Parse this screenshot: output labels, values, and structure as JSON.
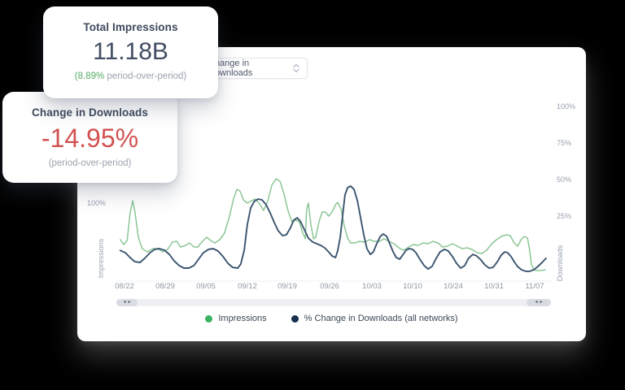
{
  "kpi1": {
    "title": "Total Impressions",
    "value": "11.18B",
    "delta_green": "(8.89%",
    "delta_gray": " period-over-period)"
  },
  "kpi2": {
    "title": "Change in Downloads",
    "value": "-14.95%",
    "subtitle": "(period-over-period)"
  },
  "panel": {
    "dropdown": {
      "value": "Change in Downloads"
    },
    "left_axis": {
      "title": "Impressions",
      "tick": "100%"
    },
    "right_axis": {
      "title": "Downloads",
      "ticks": [
        "100%",
        "75%",
        "50%",
        "25%"
      ]
    },
    "scrollbar": {
      "left_arrow": "◂",
      "right_arrow": "▸"
    },
    "legend": [
      {
        "label": "Impressions",
        "color": "#3cb264"
      },
      {
        "label": "% Change in Downloads (all networks)",
        "color": "#16304d"
      }
    ]
  },
  "colors": {
    "kpi_positive": "#53ab66",
    "kpi_negative": "#d15250",
    "heading_navy": "#3e4a5e",
    "impressions_line": "#8cc695",
    "downloads_line": "#3b5570"
  },
  "chart_data": {
    "type": "line",
    "title": "",
    "x_ticks": [
      "08/22",
      "08/29",
      "09/05",
      "09/12",
      "09/19",
      "09/26",
      "10/03",
      "10/10",
      "10/24",
      "10/31",
      "11/07"
    ],
    "left_axis": {
      "label": "Impressions",
      "visible_ticks": [
        "100%"
      ],
      "unit": "%"
    },
    "right_axis": {
      "label": "Downloads",
      "visible_ticks": [
        "100%",
        "75%",
        "50%",
        "25%"
      ],
      "unit": "%",
      "range_estimate": [
        -15,
        100
      ]
    },
    "legend_position": "bottom",
    "grid": false,
    "series": [
      {
        "name": "Impressions",
        "axis": "left",
        "color": "#8cc695",
        "points": [
          [
            0.009,
            50
          ],
          [
            0.017,
            44
          ],
          [
            0.025,
            49
          ],
          [
            0.032,
            83
          ],
          [
            0.038,
            98
          ],
          [
            0.043,
            85
          ],
          [
            0.051,
            53
          ],
          [
            0.06,
            39
          ],
          [
            0.072,
            35
          ],
          [
            0.085,
            39
          ],
          [
            0.096,
            39
          ],
          [
            0.108,
            35
          ],
          [
            0.119,
            38
          ],
          [
            0.13,
            47
          ],
          [
            0.14,
            48
          ],
          [
            0.149,
            41
          ],
          [
            0.161,
            43
          ],
          [
            0.17,
            46
          ],
          [
            0.18,
            41
          ],
          [
            0.189,
            41
          ],
          [
            0.2,
            48
          ],
          [
            0.21,
            53
          ],
          [
            0.219,
            49
          ],
          [
            0.229,
            46
          ],
          [
            0.24,
            50
          ],
          [
            0.251,
            58
          ],
          [
            0.263,
            79
          ],
          [
            0.272,
            100
          ],
          [
            0.28,
            112
          ],
          [
            0.287,
            110
          ],
          [
            0.295,
            99
          ],
          [
            0.304,
            95
          ],
          [
            0.314,
            98
          ],
          [
            0.323,
            100
          ],
          [
            0.333,
            94
          ],
          [
            0.342,
            86
          ],
          [
            0.352,
            98
          ],
          [
            0.361,
            117
          ],
          [
            0.371,
            125
          ],
          [
            0.38,
            122
          ],
          [
            0.389,
            107
          ],
          [
            0.399,
            85
          ],
          [
            0.408,
            72
          ],
          [
            0.418,
            74
          ],
          [
            0.425,
            72
          ],
          [
            0.433,
            58
          ],
          [
            0.439,
            51
          ],
          [
            0.442,
            87
          ],
          [
            0.446,
            95
          ],
          [
            0.452,
            68
          ],
          [
            0.458,
            51
          ],
          [
            0.463,
            53
          ],
          [
            0.471,
            73
          ],
          [
            0.478,
            84
          ],
          [
            0.486,
            84
          ],
          [
            0.493,
            79
          ],
          [
            0.501,
            84
          ],
          [
            0.509,
            93
          ],
          [
            0.514,
            96
          ],
          [
            0.522,
            88
          ],
          [
            0.529,
            68
          ],
          [
            0.537,
            52
          ],
          [
            0.544,
            46
          ],
          [
            0.554,
            46
          ],
          [
            0.565,
            48
          ],
          [
            0.577,
            47
          ],
          [
            0.588,
            50
          ],
          [
            0.599,
            48
          ],
          [
            0.611,
            48
          ],
          [
            0.622,
            51
          ],
          [
            0.633,
            48
          ],
          [
            0.645,
            45
          ],
          [
            0.656,
            40
          ],
          [
            0.667,
            37
          ],
          [
            0.679,
            41
          ],
          [
            0.69,
            44
          ],
          [
            0.701,
            43
          ],
          [
            0.713,
            46
          ],
          [
            0.724,
            45
          ],
          [
            0.735,
            48
          ],
          [
            0.747,
            46
          ],
          [
            0.758,
            41
          ],
          [
            0.769,
            42
          ],
          [
            0.781,
            45
          ],
          [
            0.792,
            42
          ],
          [
            0.803,
            39
          ],
          [
            0.815,
            40
          ],
          [
            0.826,
            38
          ],
          [
            0.838,
            34
          ],
          [
            0.849,
            33
          ],
          [
            0.86,
            37
          ],
          [
            0.872,
            45
          ],
          [
            0.883,
            50
          ],
          [
            0.894,
            54
          ],
          [
            0.906,
            56
          ],
          [
            0.915,
            55
          ],
          [
            0.924,
            46
          ],
          [
            0.932,
            42
          ],
          [
            0.94,
            50
          ],
          [
            0.947,
            54
          ],
          [
            0.955,
            52
          ],
          [
            0.96,
            37
          ],
          [
            0.964,
            20
          ],
          [
            0.97,
            13
          ],
          [
            0.977,
            12
          ],
          [
            0.987,
            12
          ],
          [
            0.996,
            13
          ]
        ]
      },
      {
        "name": "% Change in Downloads (all networks)",
        "axis": "right",
        "color": "#3b5570",
        "points": [
          [
            0.009,
            1.0
          ],
          [
            0.021,
            -0.6
          ],
          [
            0.032,
            -3.9
          ],
          [
            0.043,
            -6.7
          ],
          [
            0.055,
            -7.2
          ],
          [
            0.066,
            -4.4
          ],
          [
            0.078,
            -0.6
          ],
          [
            0.089,
            1.7
          ],
          [
            0.1,
            2.2
          ],
          [
            0.112,
            1.1
          ],
          [
            0.123,
            -1.7
          ],
          [
            0.134,
            -6.1
          ],
          [
            0.146,
            -9.4
          ],
          [
            0.157,
            -11.1
          ],
          [
            0.168,
            -11.1
          ],
          [
            0.18,
            -9.4
          ],
          [
            0.191,
            -5.0
          ],
          [
            0.202,
            -0.6
          ],
          [
            0.214,
            1.7
          ],
          [
            0.225,
            2.2
          ],
          [
            0.236,
            0.6
          ],
          [
            0.248,
            -3.3
          ],
          [
            0.259,
            -7.8
          ],
          [
            0.27,
            -10.6
          ],
          [
            0.282,
            -11.1
          ],
          [
            0.289,
            -8.3
          ],
          [
            0.297,
            1.1
          ],
          [
            0.304,
            18.3
          ],
          [
            0.312,
            30.0
          ],
          [
            0.32,
            34.4
          ],
          [
            0.329,
            36.1
          ],
          [
            0.338,
            35.6
          ],
          [
            0.348,
            32.2
          ],
          [
            0.357,
            26.7
          ],
          [
            0.367,
            20.0
          ],
          [
            0.376,
            14.4
          ],
          [
            0.386,
            11.1
          ],
          [
            0.395,
            11.7
          ],
          [
            0.405,
            16.7
          ],
          [
            0.412,
            21.7
          ],
          [
            0.42,
            23.3
          ],
          [
            0.427,
            21.1
          ],
          [
            0.437,
            15.0
          ],
          [
            0.446,
            9.4
          ],
          [
            0.456,
            6.7
          ],
          [
            0.465,
            5.6
          ],
          [
            0.475,
            4.4
          ],
          [
            0.484,
            2.8
          ],
          [
            0.493,
            0.0
          ],
          [
            0.501,
            -2.8
          ],
          [
            0.509,
            -3.9
          ],
          [
            0.514,
            0.6
          ],
          [
            0.52,
            10.0
          ],
          [
            0.526,
            26.1
          ],
          [
            0.531,
            38.9
          ],
          [
            0.537,
            43.9
          ],
          [
            0.544,
            45.0
          ],
          [
            0.552,
            42.8
          ],
          [
            0.56,
            35.0
          ],
          [
            0.567,
            23.9
          ],
          [
            0.575,
            11.1
          ],
          [
            0.582,
            2.2
          ],
          [
            0.59,
            -1.7
          ],
          [
            0.597,
            0.0
          ],
          [
            0.605,
            5.6
          ],
          [
            0.613,
            10.6
          ],
          [
            0.62,
            12.2
          ],
          [
            0.628,
            10.6
          ],
          [
            0.635,
            5.6
          ],
          [
            0.643,
            0.0
          ],
          [
            0.65,
            -3.9
          ],
          [
            0.658,
            -5.0
          ],
          [
            0.665,
            -2.2
          ],
          [
            0.673,
            1.1
          ],
          [
            0.68,
            2.2
          ],
          [
            0.688,
            1.7
          ],
          [
            0.696,
            -0.6
          ],
          [
            0.705,
            -5.0
          ],
          [
            0.715,
            -9.4
          ],
          [
            0.724,
            -11.7
          ],
          [
            0.733,
            -10.0
          ],
          [
            0.743,
            -4.4
          ],
          [
            0.752,
            0.0
          ],
          [
            0.762,
            1.7
          ],
          [
            0.771,
            0.6
          ],
          [
            0.781,
            -3.3
          ],
          [
            0.79,
            -7.8
          ],
          [
            0.8,
            -11.1
          ],
          [
            0.809,
            -9.4
          ],
          [
            0.818,
            -4.4
          ],
          [
            0.828,
            -1.7
          ],
          [
            0.837,
            -2.8
          ],
          [
            0.847,
            -5.6
          ],
          [
            0.856,
            -8.9
          ],
          [
            0.866,
            -11.1
          ],
          [
            0.875,
            -10.6
          ],
          [
            0.885,
            -6.7
          ],
          [
            0.894,
            -2.2
          ],
          [
            0.902,
            0.0
          ],
          [
            0.909,
            -0.6
          ],
          [
            0.917,
            -3.3
          ],
          [
            0.924,
            -6.7
          ],
          [
            0.932,
            -10.0
          ],
          [
            0.941,
            -12.2
          ],
          [
            0.951,
            -13.3
          ],
          [
            0.96,
            -13.3
          ],
          [
            0.97,
            -12.2
          ],
          [
            0.979,
            -10.0
          ],
          [
            0.989,
            -7.2
          ],
          [
            0.998,
            -4.4
          ]
        ]
      }
    ]
  }
}
